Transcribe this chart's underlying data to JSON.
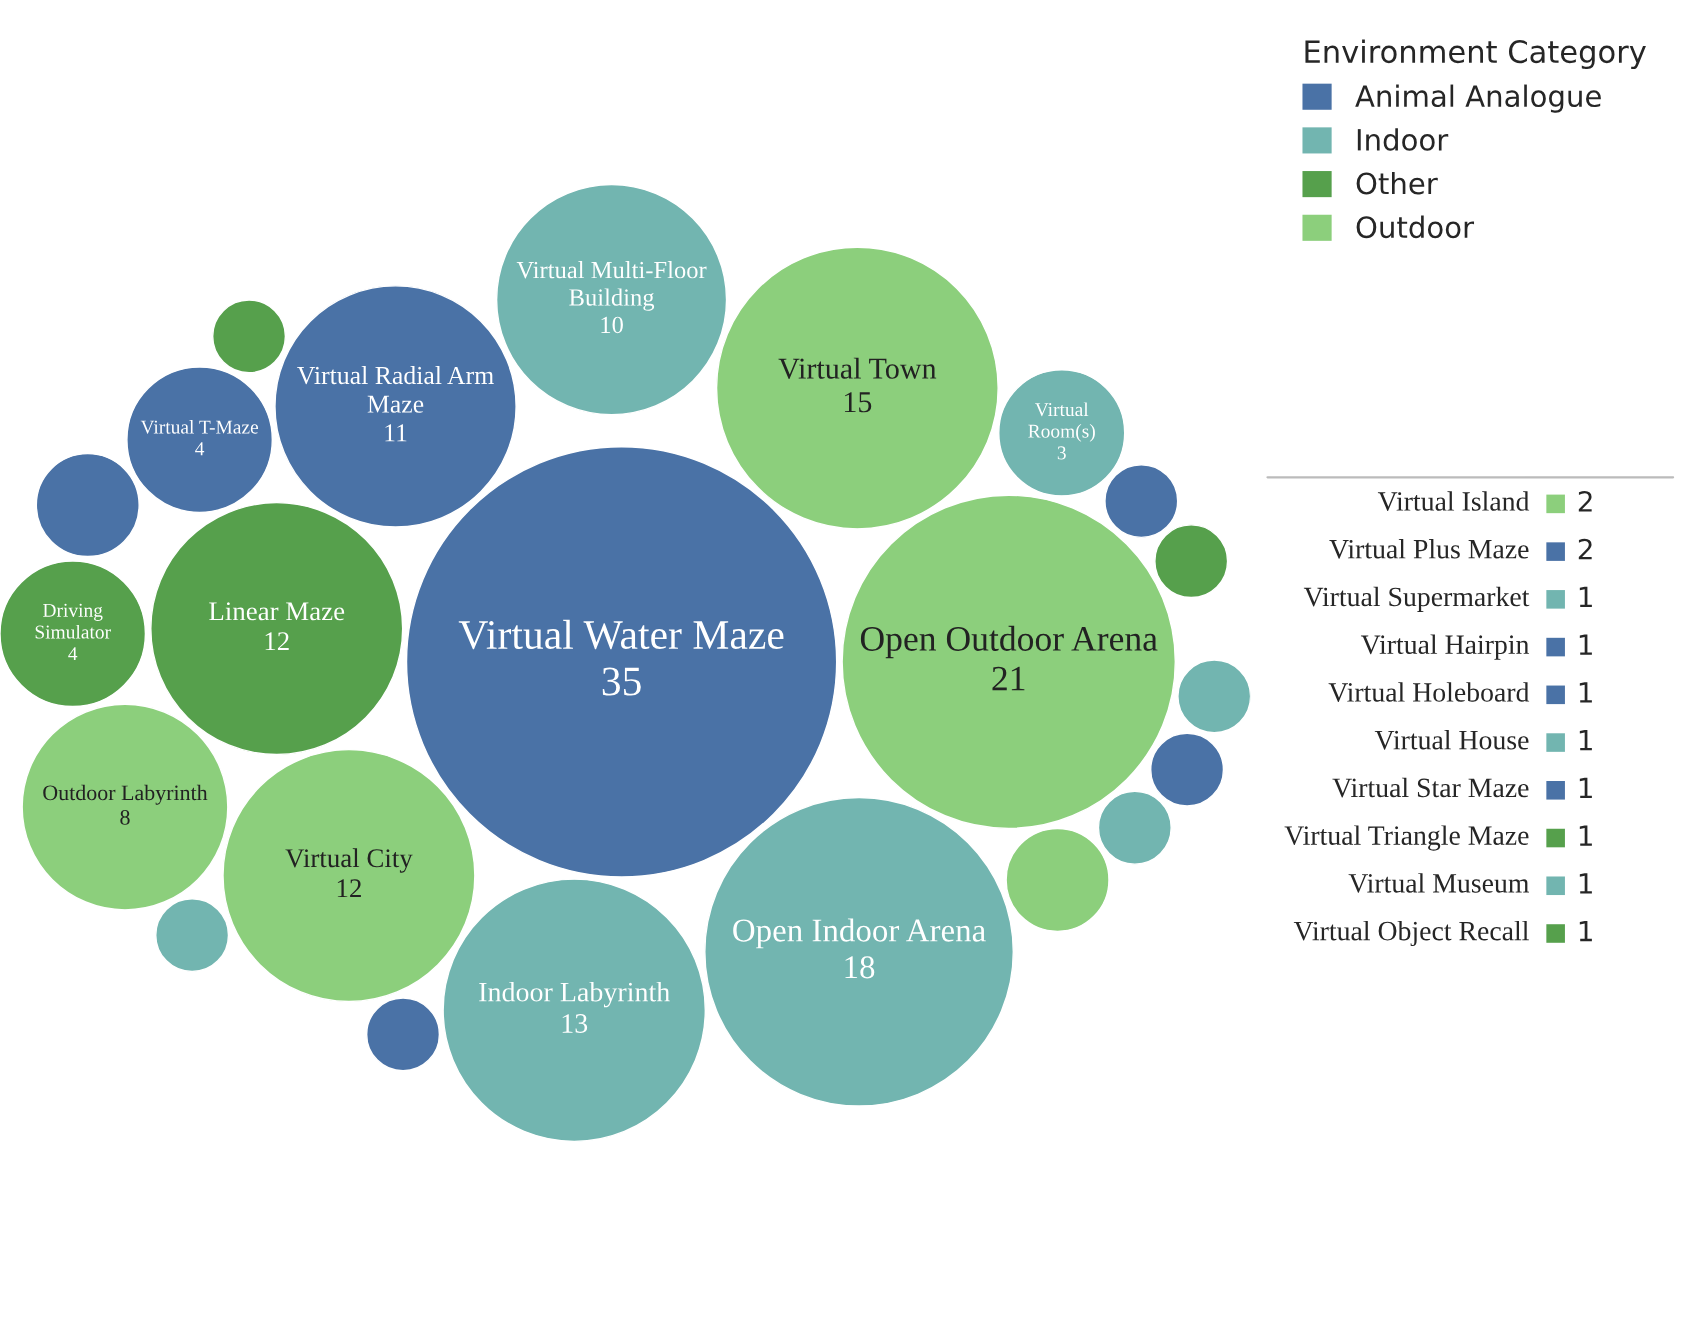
{
  "chart_data": {
    "type": "other",
    "legend_title": "Environment Category",
    "legend": "top right",
    "data_labels": true,
    "categories": [
      "Virtual Water Maze",
      "Open Outdoor Arena",
      "Open Indoor Arena",
      "Virtual Town",
      "Indoor Labyrinth",
      "Virtual City",
      "Linear Maze",
      "Virtual Radial Arm Maze",
      "Virtual Multi-Floor Building",
      "Outdoor Labyrinth",
      "Virtual T-Maze",
      "Driving Simulator",
      "Virtual Room(s)",
      "Virtual Island",
      "Virtual Plus Maze",
      "Virtual Supermarket",
      "Virtual Hairpin",
      "Virtual Holeboard",
      "Virtual House",
      "Virtual Star Maze",
      "Virtual Triangle Maze",
      "Virtual Museum",
      "Virtual Object Recall"
    ],
    "series": [
      {
        "name": "Animal Analogue",
        "color": "#4a72a6",
        "values": [
          35,
          null,
          null,
          null,
          null,
          null,
          null,
          11,
          null,
          null,
          4,
          null,
          null,
          null,
          2,
          null,
          1,
          1,
          null,
          1,
          null,
          null,
          null
        ]
      },
      {
        "name": "Indoor",
        "color": "#72b5b0",
        "values": [
          null,
          null,
          18,
          null,
          13,
          null,
          null,
          null,
          10,
          null,
          null,
          null,
          3,
          null,
          null,
          1,
          null,
          null,
          1,
          null,
          null,
          1,
          null
        ]
      },
      {
        "name": "Other",
        "color": "#56a04c",
        "values": [
          null,
          null,
          null,
          null,
          null,
          null,
          12,
          null,
          null,
          null,
          null,
          4,
          null,
          null,
          null,
          null,
          null,
          null,
          null,
          null,
          1,
          null,
          1
        ]
      },
      {
        "name": "Outdoor",
        "color": "#8ccf7c",
        "values": [
          null,
          21,
          null,
          15,
          null,
          12,
          null,
          null,
          null,
          8,
          null,
          null,
          null,
          2,
          null,
          null,
          null,
          null,
          null,
          null,
          null,
          null,
          null
        ]
      }
    ]
  }
}
